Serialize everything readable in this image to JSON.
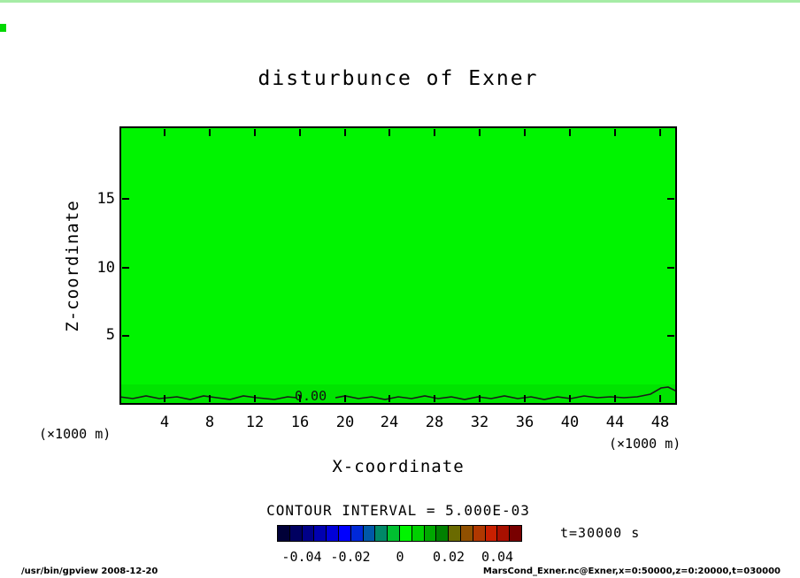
{
  "title": "disturbunce of Exner",
  "plot": {
    "fill_color": "#00f400",
    "surface_band_color": "#00e400",
    "xlabel": "X-coordinate",
    "ylabel": "Z-coordinate",
    "x_unit_left": "(×1000 m)",
    "x_unit_right": "(×1000 m)",
    "x_tick_labels": [
      "4",
      "8",
      "12",
      "16",
      "20",
      "24",
      "28",
      "32",
      "36",
      "40",
      "44",
      "48"
    ],
    "y_tick_labels": [
      "15",
      "10",
      "5"
    ],
    "zero_contour_label": "0.00"
  },
  "colorbar": {
    "title": "CONTOUR INTERVAL = 5.000E-03",
    "tick_labels": [
      "-0.04",
      "-0.02",
      "0",
      "0.02",
      "0.04"
    ],
    "segment_colors": [
      "#000038",
      "#000060",
      "#000088",
      "#0000b0",
      "#0000d8",
      "#0000ff",
      "#0028d8",
      "#0058a8",
      "#008868",
      "#00c030",
      "#00f400",
      "#00d000",
      "#00a800",
      "#008000",
      "#6a6a00",
      "#905000",
      "#b03800",
      "#c82000",
      "#a81000",
      "#780000"
    ]
  },
  "time_label": "t=30000 s",
  "footer": {
    "left": "/usr/bin/gpview  2008-12-20",
    "right": "MarsCond_Exner.nc@Exner,x=0:50000,z=0:20000,t=030000"
  },
  "chart_data": {
    "type": "heatmap",
    "subtype": "filled-contour-section",
    "title": "disturbunce of Exner",
    "xlabel": "X-coordinate",
    "ylabel": "Z-coordinate",
    "x_unit": "×1000 m",
    "y_unit": "×1000 m",
    "xlim": [
      0,
      50
    ],
    "ylim": [
      0,
      20
    ],
    "x_ticks": [
      4,
      8,
      12,
      16,
      20,
      24,
      28,
      32,
      36,
      40,
      44,
      48
    ],
    "y_ticks": [
      5,
      10,
      15
    ],
    "contour_interval": 0.005,
    "time_seconds": 30000,
    "field_summary": "Exner-function disturbance is approximately 0 over the entire x-z domain (single bright-green zero-level fill). The 0.00 contour runs along the bottom surface near z ≈ 0.5 (×1000 m) with small undulations, rising slightly near the right edge.",
    "zero_contour": {
      "label": "0.00",
      "approx_z": 0.5
    },
    "colorbar": {
      "ticks": [
        -0.04,
        -0.02,
        0,
        0.02,
        0.04
      ],
      "range": [
        -0.05,
        0.05
      ],
      "orientation": "horizontal",
      "position": "bottom"
    },
    "grid": false,
    "legend": "none"
  }
}
